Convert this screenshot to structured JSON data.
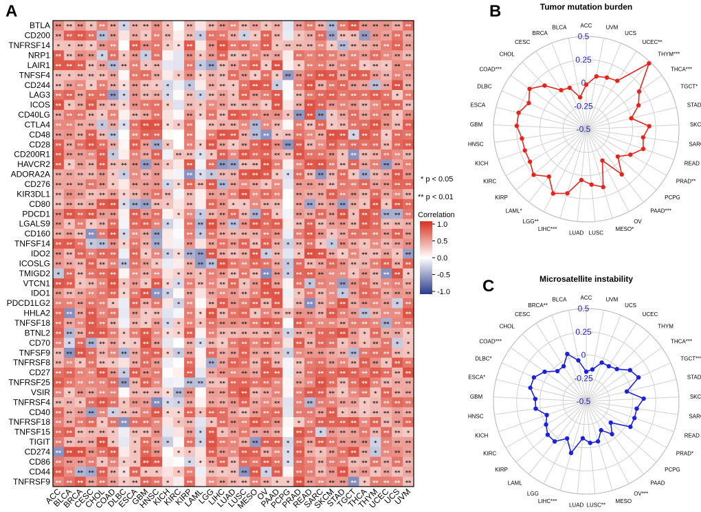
{
  "panels": {
    "a": "A",
    "b": "B",
    "c": "C"
  },
  "heatmap": {
    "genes": [
      "BTLA",
      "CD200",
      "TNFRSF14",
      "NRP1",
      "LAIR1",
      "TNFSF4",
      "CD244",
      "LAG3",
      "ICOS",
      "CD40LG",
      "CTLA4",
      "CD48",
      "CD28",
      "CD200R1",
      "HAVCR2",
      "ADORA2A",
      "CD276",
      "KIR3DL1",
      "CD80",
      "PDCD1",
      "LGALS9",
      "CD160",
      "TNFSF14",
      "IDO2",
      "ICOSLG",
      "TMIGD2",
      "VTCN1",
      "IDO1",
      "PDCD1LG2",
      "HHLA2",
      "TNFSF18",
      "BTNL2",
      "CD70",
      "TNFSF9",
      "TNFRSF8",
      "CD27",
      "TNFRSF25",
      "VSIR",
      "TNFRSF4",
      "CD40",
      "TNFRSF18",
      "TNFSF15",
      "TIGIT",
      "CD274",
      "CD86",
      "CD44",
      "TNFRSF9"
    ],
    "cancers": [
      "ACC",
      "BLCA",
      "BRCA",
      "CESC",
      "CHOL",
      "COAD",
      "DLBC",
      "ESCA",
      "GBM",
      "HNSC",
      "KICH",
      "KIRC",
      "KIRP",
      "LAML",
      "LGG",
      "LIHC",
      "LUAD",
      "LUSC",
      "MESO",
      "OV",
      "PAAD",
      "PCPG",
      "PRAD",
      "READ",
      "SARC",
      "SKCM",
      "STAD",
      "TGCT",
      "THCA",
      "THYM",
      "UCEC",
      "UCS",
      "UVM"
    ],
    "colors": {
      "high": "#d7301f",
      "mid": "#ffffff",
      "low": "#2b3a8c"
    }
  },
  "significance_notes": [
    "* p < 0.05",
    "** p < 0.01"
  ],
  "legend": {
    "title": "Correlation",
    "ticks": [
      "1.0",
      "0.5",
      "0.0",
      "-0.5",
      "-1.0"
    ]
  },
  "chart_data": [
    {
      "type": "heatmap",
      "panel": "A",
      "description_values": "Spearman correlation of immune checkpoint genes (rows) with the target gene across cancers (columns); colour range -1 to 1; stars mark significance",
      "value_range": [
        -1,
        1
      ],
      "note": "cell values are approximated from colour intensity; most cells positive (red), a few negative (blue)"
    },
    {
      "type": "radar",
      "panel": "B",
      "title": "Tumor mutation burden",
      "color": "#e8231a",
      "radial_ticks": [
        "0.5",
        "0.25",
        "0",
        "-0.25",
        "-0.5"
      ],
      "rlim": [
        -0.5,
        0.5
      ],
      "axes": [
        "ACC",
        "UVM",
        "UCS",
        "UCEC**",
        "THYM***",
        "THCA***",
        "TGCT*",
        "STAD",
        "SKCM",
        "SARC",
        "READ",
        "PRAD**",
        "PCPG",
        "PAAD***",
        "OV",
        "MESO*",
        "LUSC",
        "LUAD",
        "LIHC***",
        "LGG**",
        "LAML*",
        "KIRP",
        "KIRC",
        "KICH",
        "HNSC",
        "GBM",
        "ESCA",
        "DLBC",
        "COAD***",
        "CHOL",
        "CESC",
        "BRCA",
        "BLCA"
      ],
      "values": [
        -0.02,
        0.08,
        0.1,
        0.12,
        0.48,
        0.2,
        0.12,
        0.0,
        0.18,
        0.12,
        0.15,
        0.05,
        -0.05,
        0.12,
        -0.12,
        0.15,
        0.1,
        0.05,
        0.22,
        0.28,
        0.15,
        0.25,
        0.2,
        0.2,
        0.2,
        0.25,
        0.25,
        0.18,
        0.25,
        0.15,
        0.0,
        -0.02,
        -0.15
      ]
    },
    {
      "type": "radar",
      "panel": "C",
      "title": "Microsatellite instability",
      "color": "#1a22e0",
      "radial_ticks": [
        "0.5",
        "0.25",
        "0",
        "-0.25",
        "-0.5"
      ],
      "rlim": [
        -0.5,
        0.5
      ],
      "axes": [
        "ACC",
        "UVM",
        "UCS",
        "UCEC",
        "THYM",
        "THCA***",
        "TGCT***",
        "STAD*",
        "SKCM**",
        "SARC",
        "READ",
        "PRAD*",
        "PCPG",
        "PAAD",
        "OV***",
        "MESO",
        "LUSC**",
        "LUAD",
        "LIHC***",
        "LGG",
        "LAML",
        "KIRP",
        "KIRC",
        "KICH",
        "HNSC",
        "GBM",
        "ESCA*",
        "DLBC*",
        "COAD***",
        "CHOL",
        "CESC",
        "BRCA**",
        "BLCA"
      ],
      "values": [
        -0.18,
        -0.15,
        -0.05,
        -0.05,
        -0.02,
        0.08,
        0.12,
        -0.05,
        0.12,
        0.05,
        0.05,
        0.05,
        -0.15,
        -0.05,
        -0.15,
        -0.05,
        -0.05,
        -0.1,
        0.08,
        -0.05,
        0.05,
        0.05,
        0.0,
        -0.05,
        0.05,
        0.05,
        0.12,
        0.12,
        0.05,
        -0.05,
        -0.05,
        0.05,
        -0.05
      ]
    }
  ]
}
